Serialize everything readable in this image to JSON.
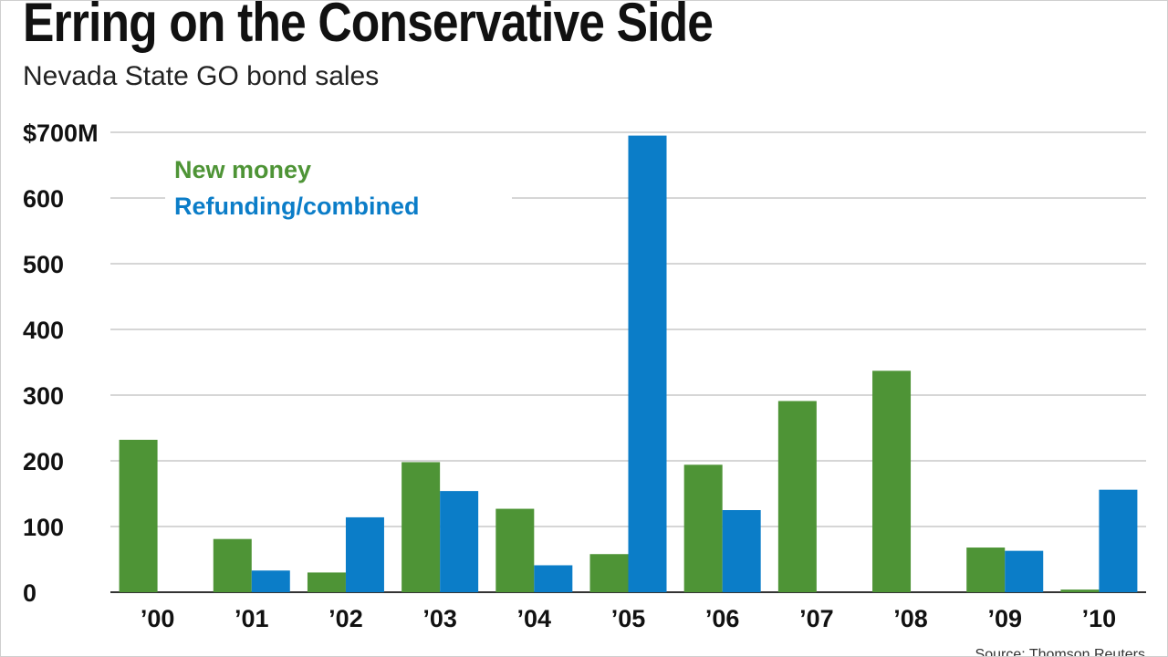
{
  "chart_data": {
    "type": "bar",
    "title": "Erring on the Conservative Side",
    "subtitle": "Nevada State GO bond sales",
    "source": "Source: Thomson Reuters",
    "categories": [
      "’00",
      "’01",
      "’02",
      "’03",
      "’04",
      "’05",
      "’06",
      "’07",
      "’08",
      "’09",
      "’10"
    ],
    "series": [
      {
        "name": "New money",
        "color": "#4e9436",
        "values": [
          232,
          81,
          30,
          198,
          127,
          58,
          194,
          291,
          337,
          68,
          4
        ]
      },
      {
        "name": "Refunding/combined",
        "color": "#0b7dc8",
        "values": [
          0,
          33,
          114,
          154,
          41,
          695,
          125,
          0,
          0,
          63,
          156
        ]
      }
    ],
    "ylim": [
      0,
      700
    ],
    "yticks": [
      0,
      100,
      200,
      300,
      400,
      500,
      600,
      700
    ],
    "ytick_labels": [
      "0",
      "100",
      "200",
      "300",
      "400",
      "500",
      "600",
      "$700M"
    ],
    "xlabel": "",
    "ylabel": "",
    "grid": true,
    "legend_position": "top-left"
  }
}
